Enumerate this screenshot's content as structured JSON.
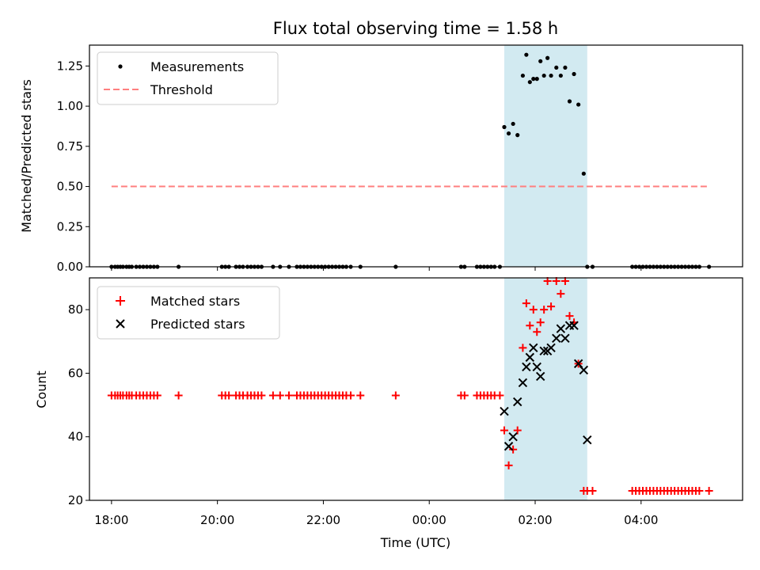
{
  "chart_data": [
    {
      "type": "scatter",
      "title": "Flux total observing time = 1.58 h",
      "xlabel": "",
      "ylabel": "Matched/Predicted stars",
      "ylim": [
        0,
        1.38
      ],
      "xlim": [
        "17:35",
        "05:55"
      ],
      "yticks": [
        0.0,
        0.25,
        0.5,
        0.75,
        1.0,
        1.25
      ],
      "ytick_labels": [
        "0.00",
        "0.25",
        "0.50",
        "0.75",
        "1.00",
        "1.25"
      ],
      "grid": false,
      "legend": "top-left",
      "legend_entries": [
        {
          "label": "Measurements",
          "marker": "dot",
          "color": "#000000"
        },
        {
          "label": "Threshold",
          "marker": "dashed-line",
          "color": "#ff7f7f"
        }
      ],
      "highlight_span": {
        "start": "01:25",
        "end": "02:59",
        "color": "#add8e6"
      },
      "threshold": {
        "value": 0.5,
        "x_start": "18:00",
        "x_end": "05:17",
        "color": "#ff7f7f"
      },
      "measurements": {
        "x": [
          "18:00",
          "18:04",
          "18:07",
          "18:10",
          "18:13",
          "18:17",
          "18:20",
          "18:23",
          "18:28",
          "18:32",
          "18:36",
          "18:40",
          "18:44",
          "18:48",
          "18:52",
          "19:16",
          "20:05",
          "20:09",
          "20:13",
          "20:21",
          "20:25",
          "20:29",
          "20:34",
          "20:38",
          "20:42",
          "20:46",
          "20:50",
          "21:03",
          "21:11",
          "21:21",
          "21:30",
          "21:34",
          "21:38",
          "21:42",
          "21:46",
          "21:50",
          "21:54",
          "21:58",
          "22:02",
          "22:06",
          "22:10",
          "22:14",
          "22:18",
          "22:22",
          "22:26",
          "22:31",
          "22:42",
          "23:22",
          "00:36",
          "00:40",
          "00:54",
          "00:58",
          "01:02",
          "01:06",
          "01:10",
          "01:14",
          "01:20",
          "01:25",
          "01:30",
          "01:35",
          "01:40",
          "01:46",
          "01:50",
          "01:54",
          "01:58",
          "02:02",
          "02:06",
          "02:10",
          "02:14",
          "02:18",
          "02:24",
          "02:29",
          "02:34",
          "02:39",
          "02:44",
          "02:49",
          "02:55",
          "02:59",
          "03:05",
          "03:50",
          "03:54",
          "03:58",
          "04:02",
          "04:06",
          "04:10",
          "04:14",
          "04:18",
          "04:22",
          "04:26",
          "04:30",
          "04:34",
          "04:38",
          "04:42",
          "04:46",
          "04:50",
          "04:54",
          "04:58",
          "05:02",
          "05:06",
          "05:17"
        ],
        "y": [
          0,
          0,
          0,
          0,
          0,
          0,
          0,
          0,
          0,
          0,
          0,
          0,
          0,
          0,
          0,
          0,
          0,
          0,
          0,
          0,
          0,
          0,
          0,
          0,
          0,
          0,
          0,
          0,
          0,
          0,
          0,
          0,
          0,
          0,
          0,
          0,
          0,
          0,
          0,
          0,
          0,
          0,
          0,
          0,
          0,
          0,
          0,
          0,
          0,
          0,
          0,
          0,
          0,
          0,
          0,
          0,
          0,
          0.87,
          0.83,
          0.89,
          0.82,
          1.19,
          1.32,
          1.15,
          1.17,
          1.17,
          1.28,
          1.19,
          1.3,
          1.19,
          1.24,
          1.19,
          1.24,
          1.03,
          1.2,
          1.01,
          0.58,
          0,
          0,
          0,
          0,
          0,
          0,
          0,
          0,
          0,
          0,
          0,
          0,
          0,
          0,
          0,
          0,
          0,
          0,
          0,
          0,
          0,
          0,
          0
        ]
      }
    },
    {
      "type": "scatter",
      "title": "",
      "xlabel": "Time (UTC)",
      "ylabel": "Count",
      "ylim": [
        20,
        90
      ],
      "xlim": [
        "17:35",
        "05:55"
      ],
      "yticks": [
        20,
        40,
        60,
        80
      ],
      "ytick_labels": [
        "20",
        "40",
        "60",
        "80"
      ],
      "xticks": [
        "18:00",
        "20:00",
        "22:00",
        "00:00",
        "02:00",
        "04:00"
      ],
      "grid": false,
      "legend": "top-left",
      "legend_entries": [
        {
          "label": "Matched stars",
          "marker": "plus",
          "color": "#ff0000"
        },
        {
          "label": "Predicted stars",
          "marker": "x",
          "color": "#000000"
        }
      ],
      "highlight_span": {
        "start": "01:25",
        "end": "02:59",
        "color": "#add8e6"
      },
      "matched": {
        "x": [
          "18:00",
          "18:04",
          "18:07",
          "18:10",
          "18:13",
          "18:17",
          "18:20",
          "18:23",
          "18:28",
          "18:32",
          "18:36",
          "18:40",
          "18:44",
          "18:48",
          "18:52",
          "19:16",
          "20:05",
          "20:09",
          "20:13",
          "20:21",
          "20:25",
          "20:29",
          "20:34",
          "20:38",
          "20:42",
          "20:46",
          "20:50",
          "21:03",
          "21:11",
          "21:21",
          "21:30",
          "21:34",
          "21:38",
          "21:42",
          "21:46",
          "21:50",
          "21:54",
          "21:58",
          "22:02",
          "22:06",
          "22:10",
          "22:14",
          "22:18",
          "22:22",
          "22:26",
          "22:31",
          "22:42",
          "23:22",
          "00:36",
          "00:40",
          "00:54",
          "00:58",
          "01:02",
          "01:06",
          "01:10",
          "01:14",
          "01:20",
          "01:25",
          "01:30",
          "01:35",
          "01:40",
          "01:46",
          "01:50",
          "01:54",
          "01:58",
          "02:02",
          "02:06",
          "02:10",
          "02:14",
          "02:18",
          "02:24",
          "02:29",
          "02:34",
          "02:39",
          "02:44",
          "02:49",
          "02:55",
          "02:59",
          "03:05",
          "03:50",
          "03:54",
          "03:58",
          "04:02",
          "04:06",
          "04:10",
          "04:14",
          "04:18",
          "04:22",
          "04:26",
          "04:30",
          "04:34",
          "04:38",
          "04:42",
          "04:46",
          "04:50",
          "04:54",
          "04:58",
          "05:02",
          "05:06",
          "05:17"
        ],
        "y": [
          53,
          53,
          53,
          53,
          53,
          53,
          53,
          53,
          53,
          53,
          53,
          53,
          53,
          53,
          53,
          53,
          53,
          53,
          53,
          53,
          53,
          53,
          53,
          53,
          53,
          53,
          53,
          53,
          53,
          53,
          53,
          53,
          53,
          53,
          53,
          53,
          53,
          53,
          53,
          53,
          53,
          53,
          53,
          53,
          53,
          53,
          53,
          53,
          53,
          53,
          53,
          53,
          53,
          53,
          53,
          53,
          53,
          42,
          31,
          36,
          42,
          68,
          82,
          75,
          80,
          73,
          76,
          80,
          89,
          81,
          89,
          85,
          89,
          78,
          76,
          63,
          23,
          23,
          23,
          23,
          23,
          23,
          23,
          23,
          23,
          23,
          23,
          23,
          23,
          23,
          23,
          23,
          23,
          23,
          23,
          23,
          23,
          23,
          23,
          23
        ]
      },
      "predicted": {
        "x": [
          "01:25",
          "01:30",
          "01:35",
          "01:40",
          "01:46",
          "01:50",
          "01:54",
          "01:58",
          "02:02",
          "02:06",
          "02:10",
          "02:14",
          "02:18",
          "02:24",
          "02:29",
          "02:34",
          "02:39",
          "02:44",
          "02:49",
          "02:55",
          "02:59"
        ],
        "y": [
          48,
          37,
          40,
          51,
          57,
          62,
          65,
          68,
          62,
          59,
          67,
          67,
          68,
          71,
          74,
          71,
          75,
          75,
          63,
          61,
          39
        ]
      }
    }
  ]
}
